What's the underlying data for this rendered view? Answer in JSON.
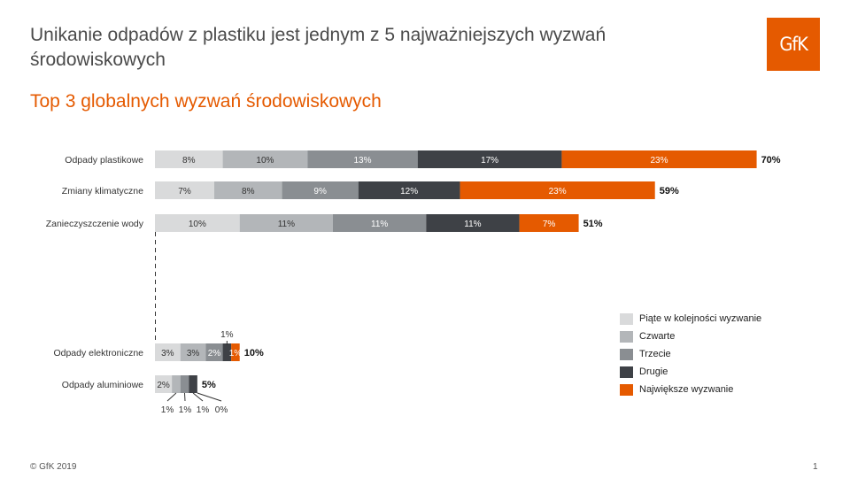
{
  "header": {
    "title": "Unikanie odpadów z plastiku jest jednym z 5 najważniejszych wyzwań środowiskowych",
    "subtitle": "Top 3 globalnych  wyzwań środowiskowych",
    "logo_text": "GfK"
  },
  "footer": {
    "copyright": "© GfK 2019",
    "page_number": "1"
  },
  "colors": {
    "fifth": "#d9dadb",
    "fourth": "#b3b6b9",
    "third": "#8a8e92",
    "second": "#3e4146",
    "first": "#e55a00"
  },
  "chart_data": {
    "type": "bar",
    "orientation": "horizontal",
    "stacked": true,
    "categories": [
      "Odpady plastikowe",
      "Zmiany klimatyczne",
      "Zanieczyszczenie wody",
      "Odpady elektroniczne",
      "Odpady aluminiowe"
    ],
    "series": [
      {
        "name": "Piąte w kolejności wyzwanie",
        "color_key": "fifth",
        "values": [
          8,
          7,
          10,
          3,
          2
        ],
        "labels": [
          "8%",
          "7%",
          "10%",
          "3%",
          "2%"
        ]
      },
      {
        "name": "Czwarte",
        "color_key": "fourth",
        "values": [
          10,
          8,
          11,
          3,
          1
        ],
        "labels": [
          "10%",
          "8%",
          "11%",
          "3%",
          "1%"
        ]
      },
      {
        "name": "Trzecie",
        "color_key": "third",
        "values": [
          13,
          9,
          11,
          2,
          1
        ],
        "labels": [
          "13%",
          "9%",
          "11%",
          "2%",
          "1%"
        ]
      },
      {
        "name": "Drugie",
        "color_key": "second",
        "values": [
          17,
          12,
          11,
          1,
          1
        ],
        "labels": [
          "17%",
          "12%",
          "11%",
          "1%",
          "1%"
        ]
      },
      {
        "name": "Największe wyzwanie",
        "color_key": "first",
        "values": [
          23,
          23,
          7,
          1,
          0
        ],
        "labels": [
          "23%",
          "23%",
          "7%",
          "1%",
          "0%"
        ]
      }
    ],
    "totals": [
      "70%",
      "59%",
      "51%",
      "10%",
      "5%"
    ],
    "axis_break": "between Zanieczyszczenie wody and Odpady elektroniczne",
    "legend_position": "right"
  }
}
